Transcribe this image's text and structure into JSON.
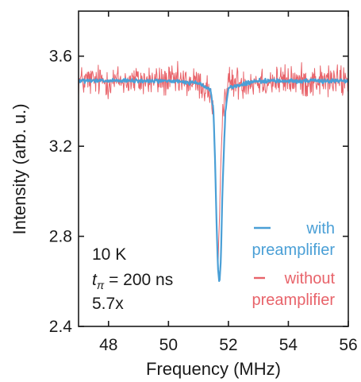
{
  "chart_data": {
    "type": "line",
    "xlabel": "Frequency (MHz)",
    "ylabel": "Intensity (arb. u.)",
    "xlim": [
      47,
      56
    ],
    "ylim": [
      2.4,
      3.8
    ],
    "xticks": [
      48,
      50,
      52,
      54,
      56
    ],
    "yticks": [
      2.4,
      2.8,
      3.2,
      3.6
    ],
    "xtick_labels": [
      "48",
      "50",
      "52",
      "54",
      "56"
    ],
    "ytick_labels": [
      "2.4",
      "2.8",
      "3.2",
      "3.6"
    ],
    "grid": false,
    "legend_placement": "bottom-right",
    "series": [
      {
        "name": "without preamplifier",
        "legend_line1": "without",
        "legend_line2": "preamplifier",
        "color": "#e8636a",
        "baseline": 3.49,
        "noise_amplitude": 0.05,
        "dip_center": 51.65,
        "dip_min": 2.64,
        "x": [
          47.0,
          48.0,
          49.0,
          50.0,
          51.0,
          51.4,
          51.5,
          51.55,
          51.6,
          51.65,
          51.7,
          51.75,
          51.8,
          51.9,
          52.0,
          53.0,
          54.0,
          55.0,
          56.0
        ],
        "y": [
          3.49,
          3.49,
          3.49,
          3.49,
          3.48,
          3.44,
          3.33,
          3.15,
          2.9,
          2.64,
          2.88,
          3.15,
          3.33,
          3.44,
          3.48,
          3.49,
          3.49,
          3.49,
          3.49
        ]
      },
      {
        "name": "with preamplifier",
        "legend_line1": "with",
        "legend_line2": "preamplifier",
        "color": "#4a9fd6",
        "baseline": 3.49,
        "noise_amplitude": 0.006,
        "dip_center": 51.7,
        "dip_min": 2.59,
        "x": [
          47.0,
          48.0,
          49.0,
          50.0,
          51.0,
          51.4,
          51.5,
          51.55,
          51.6,
          51.65,
          51.7,
          51.75,
          51.8,
          51.9,
          52.0,
          53.0,
          54.0,
          55.0,
          56.0
        ],
        "y": [
          3.49,
          3.49,
          3.49,
          3.49,
          3.48,
          3.45,
          3.36,
          3.16,
          2.88,
          2.66,
          2.59,
          2.7,
          3.0,
          3.36,
          3.46,
          3.49,
          3.49,
          3.49,
          3.49
        ]
      }
    ],
    "annotations": {
      "temperature": "10 K",
      "pulse_symbol": "t",
      "pulse_subscript": "π",
      "pulse_value": " = 200 ns",
      "improvement": "5.7x"
    }
  }
}
